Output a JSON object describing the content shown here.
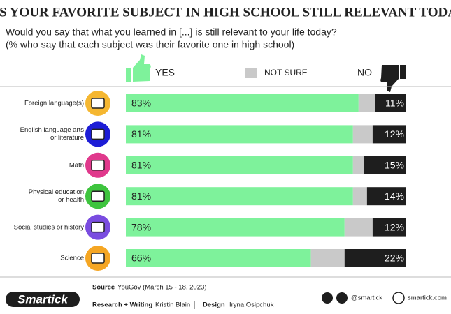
{
  "chart_data": {
    "type": "stacked-bar",
    "title": "WAS YOUR FAVORITE SUBJECT IN HIGH SCHOOL STILL RELEVANT TODAY?",
    "subtitle": [
      "Would you say that what you learned in [...] is still relevant to your life today?",
      "(% who say that each subject was their favorite one in high school)"
    ],
    "categories": [
      "Foreign language(s)",
      "English language arts\nor literature",
      "Math",
      "Physical education\nor health",
      "Social studies or history",
      "Science"
    ],
    "xlim": [
      0,
      100
    ],
    "series": [
      {
        "name": "YES",
        "color": "#7ef29b",
        "values": [
          83,
          81,
          81,
          81,
          78,
          66
        ],
        "value_labels": [
          "83%",
          "81%",
          "81%",
          "81%",
          "78%",
          "66%"
        ]
      },
      {
        "name": "NOT SURE",
        "color": "#c9c9c9",
        "values": [
          6,
          7,
          4,
          5,
          10,
          12
        ]
      },
      {
        "name": "NO",
        "color": "#1e1e1e",
        "values": [
          11,
          12,
          15,
          14,
          12,
          22
        ],
        "value_labels": [
          "11%",
          "12%",
          "15%",
          "14%",
          "12%",
          "22%"
        ]
      }
    ]
  },
  "footer": {
    "logo": "Smartick",
    "source_label": "Source",
    "source": "YouGov (March 15 - 18, 2023)",
    "research_label": "Research + Writing",
    "research": "Kristin Blain",
    "design_label": "Design",
    "design": "Iryna Osipchuk",
    "handle": "@smartick",
    "website": "smartick.com"
  }
}
